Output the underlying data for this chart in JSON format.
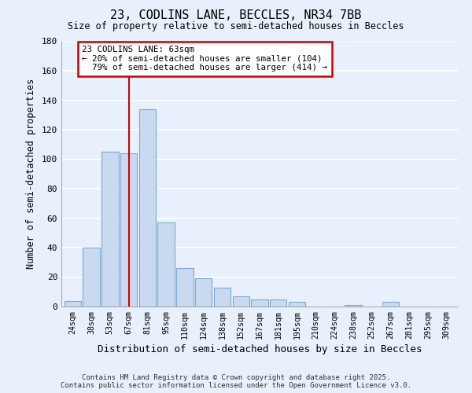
{
  "title": "23, CODLINS LANE, BECCLES, NR34 7BB",
  "subtitle": "Size of property relative to semi-detached houses in Beccles",
  "xlabel": "Distribution of semi-detached houses by size in Beccles",
  "ylabel": "Number of semi-detached properties",
  "bar_labels": [
    "24sqm",
    "38sqm",
    "53sqm",
    "67sqm",
    "81sqm",
    "95sqm",
    "110sqm",
    "124sqm",
    "138sqm",
    "152sqm",
    "167sqm",
    "181sqm",
    "195sqm",
    "210sqm",
    "224sqm",
    "238sqm",
    "252sqm",
    "267sqm",
    "281sqm",
    "295sqm",
    "309sqm"
  ],
  "bar_values": [
    4,
    40,
    105,
    104,
    134,
    57,
    26,
    19,
    13,
    7,
    5,
    5,
    3,
    0,
    0,
    1,
    0,
    3,
    0,
    0,
    0
  ],
  "bar_color": "#c9d9f0",
  "bar_edge_color": "#7aaad0",
  "background_color": "#e8f0fb",
  "grid_color": "#ffffff",
  "property_line_x": 3.0,
  "property_label": "23 CODLINS LANE: 63sqm",
  "pct_smaller": 20,
  "pct_larger": 79,
  "n_smaller": 104,
  "n_larger": 414,
  "annotation_box_color": "#ffffff",
  "annotation_box_edge": "#cc0000",
  "line_color": "#cc0000",
  "ylim": [
    0,
    180
  ],
  "yticks": [
    0,
    20,
    40,
    60,
    80,
    100,
    120,
    140,
    160,
    180
  ],
  "footer_line1": "Contains HM Land Registry data © Crown copyright and database right 2025.",
  "footer_line2": "Contains public sector information licensed under the Open Government Licence v3.0."
}
